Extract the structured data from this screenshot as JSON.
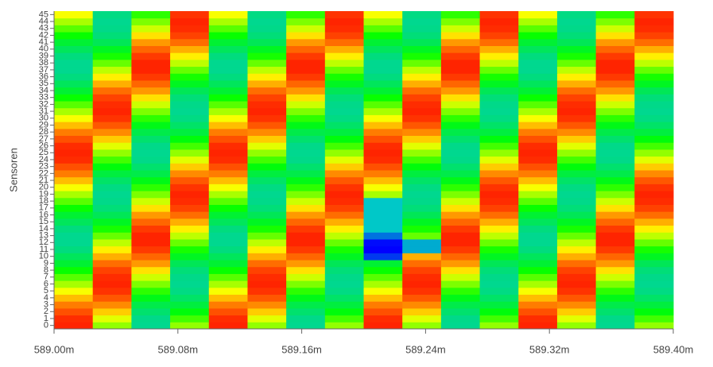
{
  "chart_data": {
    "type": "heatmap",
    "ylabel": "Sensoren",
    "x": [
      589.0,
      589.025,
      589.05,
      589.075,
      589.1,
      589.125,
      589.15,
      589.175,
      589.2,
      589.225,
      589.25,
      589.275,
      589.3,
      589.325,
      589.35,
      589.375
    ],
    "xlim": [
      589.0,
      589.4
    ],
    "xticks": [
      {
        "value": 589.0,
        "label": "589.00m"
      },
      {
        "value": 589.08,
        "label": "589.08m"
      },
      {
        "value": 589.16,
        "label": "589.16m"
      },
      {
        "value": 589.24,
        "label": "589.24m"
      },
      {
        "value": 589.32,
        "label": "589.32m"
      },
      {
        "value": 589.4,
        "label": "589.40m"
      }
    ],
    "ylim": [
      -0.5,
      45.5
    ],
    "yticks": [
      0,
      1,
      2,
      3,
      4,
      5,
      6,
      7,
      8,
      9,
      10,
      11,
      12,
      13,
      14,
      15,
      16,
      17,
      18,
      19,
      20,
      21,
      22,
      23,
      24,
      25,
      26,
      27,
      28,
      29,
      30,
      31,
      32,
      33,
      34,
      35,
      36,
      37,
      38,
      39,
      40,
      41,
      42,
      43,
      44,
      45
    ],
    "zlim": [
      -40,
      100
    ],
    "colors": [
      "#0000ff",
      "#00c8c8",
      "#00ff00",
      "#ffff00",
      "#ff0000"
    ],
    "z": [
      [
        95,
        50,
        5,
        50,
        95,
        50,
        5,
        50,
        95,
        50,
        5,
        50,
        95,
        50,
        5,
        50
      ],
      [
        94,
        61,
        6,
        39,
        94,
        61,
        6,
        39,
        94,
        61,
        6,
        39,
        94,
        61,
        6,
        39
      ],
      [
        89,
        72,
        11,
        28,
        89,
        72,
        11,
        28,
        89,
        72,
        11,
        28,
        89,
        72,
        11,
        28
      ],
      [
        83,
        81,
        17,
        19,
        83,
        81,
        17,
        19,
        83,
        81,
        17,
        19,
        83,
        81,
        17,
        19
      ],
      [
        74,
        88,
        26,
        12,
        74,
        88,
        26,
        12,
        74,
        88,
        26,
        12,
        74,
        88,
        26,
        12
      ],
      [
        64,
        93,
        36,
        7,
        64,
        93,
        36,
        7,
        64,
        93,
        36,
        7,
        64,
        93,
        36,
        7
      ],
      [
        53,
        95,
        47,
        5,
        53,
        95,
        47,
        5,
        53,
        95,
        47,
        5,
        53,
        95,
        47,
        5
      ],
      [
        42,
        94,
        58,
        6,
        42,
        94,
        58,
        6,
        42,
        94,
        58,
        6,
        42,
        94,
        58,
        6
      ],
      [
        31,
        91,
        69,
        9,
        31,
        91,
        69,
        9,
        31,
        91,
        69,
        9,
        31,
        91,
        69,
        9
      ],
      [
        21,
        85,
        79,
        15,
        21,
        85,
        79,
        15,
        21,
        85,
        79,
        15,
        21,
        85,
        79,
        15
      ],
      [
        14,
        76,
        86,
        24,
        14,
        76,
        86,
        24,
        -30,
        76,
        86,
        24,
        14,
        76,
        86,
        24
      ],
      [
        8,
        67,
        92,
        33,
        8,
        67,
        92,
        33,
        -40,
        -10,
        92,
        33,
        8,
        67,
        92,
        33
      ],
      [
        5,
        56,
        95,
        44,
        5,
        56,
        95,
        44,
        -38,
        -10,
        95,
        44,
        5,
        56,
        95,
        44
      ],
      [
        5,
        44,
        95,
        56,
        5,
        44,
        95,
        56,
        -20,
        44,
        95,
        56,
        5,
        44,
        95,
        56
      ],
      [
        8,
        33,
        92,
        67,
        8,
        33,
        92,
        67,
        -5,
        33,
        92,
        67,
        8,
        33,
        92,
        67
      ],
      [
        14,
        24,
        86,
        76,
        14,
        24,
        86,
        76,
        -5,
        24,
        86,
        76,
        14,
        24,
        86,
        76
      ],
      [
        21,
        15,
        79,
        85,
        21,
        15,
        79,
        85,
        -5,
        15,
        79,
        85,
        21,
        15,
        79,
        85
      ],
      [
        31,
        9,
        69,
        91,
        31,
        9,
        69,
        91,
        -5,
        9,
        69,
        91,
        31,
        9,
        69,
        91
      ],
      [
        42,
        6,
        58,
        94,
        42,
        6,
        58,
        94,
        -5,
        6,
        58,
        94,
        42,
        6,
        58,
        94
      ],
      [
        53,
        5,
        47,
        95,
        53,
        5,
        47,
        95,
        53,
        5,
        47,
        95,
        53,
        5,
        47,
        95
      ],
      [
        64,
        7,
        36,
        93,
        64,
        7,
        36,
        93,
        64,
        7,
        36,
        93,
        64,
        7,
        36,
        93
      ],
      [
        74,
        12,
        26,
        88,
        74,
        12,
        26,
        88,
        74,
        12,
        26,
        88,
        74,
        12,
        26,
        88
      ],
      [
        83,
        19,
        17,
        81,
        83,
        19,
        17,
        81,
        83,
        19,
        17,
        81,
        83,
        19,
        17,
        81
      ],
      [
        89,
        28,
        11,
        72,
        89,
        28,
        11,
        72,
        89,
        28,
        11,
        72,
        89,
        28,
        11,
        72
      ],
      [
        94,
        39,
        6,
        61,
        94,
        39,
        6,
        61,
        94,
        39,
        6,
        61,
        94,
        39,
        6,
        61
      ],
      [
        95,
        50,
        5,
        50,
        95,
        50,
        5,
        50,
        95,
        50,
        5,
        50,
        95,
        50,
        5,
        50
      ],
      [
        94,
        61,
        6,
        39,
        94,
        61,
        6,
        39,
        94,
        61,
        6,
        39,
        94,
        61,
        6,
        39
      ],
      [
        89,
        72,
        11,
        28,
        89,
        72,
        11,
        28,
        89,
        72,
        11,
        28,
        89,
        72,
        11,
        28
      ],
      [
        83,
        81,
        17,
        19,
        83,
        81,
        17,
        19,
        83,
        81,
        17,
        19,
        83,
        81,
        17,
        19
      ],
      [
        74,
        88,
        26,
        12,
        74,
        88,
        26,
        12,
        74,
        88,
        26,
        12,
        74,
        88,
        26,
        12
      ],
      [
        64,
        93,
        36,
        7,
        64,
        93,
        36,
        7,
        64,
        93,
        36,
        7,
        64,
        93,
        36,
        7
      ],
      [
        53,
        95,
        47,
        5,
        53,
        95,
        47,
        5,
        53,
        95,
        47,
        5,
        53,
        95,
        47,
        5
      ],
      [
        42,
        94,
        58,
        6,
        42,
        94,
        58,
        6,
        42,
        94,
        58,
        6,
        42,
        94,
        58,
        6
      ],
      [
        31,
        91,
        69,
        9,
        31,
        91,
        69,
        9,
        31,
        91,
        69,
        9,
        31,
        91,
        69,
        9
      ],
      [
        21,
        85,
        79,
        15,
        21,
        85,
        79,
        15,
        21,
        85,
        79,
        15,
        21,
        85,
        79,
        15
      ],
      [
        14,
        76,
        86,
        24,
        14,
        76,
        86,
        24,
        14,
        76,
        86,
        24,
        14,
        76,
        86,
        24
      ],
      [
        8,
        67,
        92,
        33,
        8,
        67,
        92,
        33,
        8,
        67,
        92,
        33,
        8,
        67,
        92,
        33
      ],
      [
        5,
        56,
        95,
        44,
        5,
        56,
        95,
        44,
        5,
        56,
        95,
        44,
        5,
        56,
        95,
        44
      ],
      [
        5,
        44,
        95,
        56,
        5,
        44,
        95,
        56,
        5,
        44,
        95,
        56,
        5,
        44,
        95,
        56
      ],
      [
        8,
        33,
        92,
        67,
        8,
        33,
        92,
        67,
        8,
        33,
        92,
        67,
        8,
        33,
        92,
        67
      ],
      [
        14,
        24,
        86,
        76,
        14,
        24,
        86,
        76,
        14,
        24,
        86,
        76,
        14,
        24,
        86,
        76
      ],
      [
        21,
        15,
        79,
        85,
        21,
        15,
        79,
        85,
        21,
        15,
        79,
        85,
        21,
        15,
        79,
        85
      ],
      [
        31,
        9,
        69,
        91,
        31,
        9,
        69,
        91,
        31,
        9,
        69,
        91,
        31,
        9,
        69,
        91
      ],
      [
        42,
        6,
        58,
        94,
        42,
        6,
        58,
        94,
        42,
        6,
        58,
        94,
        42,
        6,
        58,
        94
      ],
      [
        53,
        5,
        47,
        95,
        53,
        5,
        47,
        95,
        53,
        5,
        47,
        95,
        53,
        5,
        47,
        95
      ],
      [
        64,
        7,
        36,
        93,
        64,
        7,
        36,
        93,
        64,
        7,
        36,
        93,
        64,
        7,
        36,
        93
      ]
    ]
  }
}
